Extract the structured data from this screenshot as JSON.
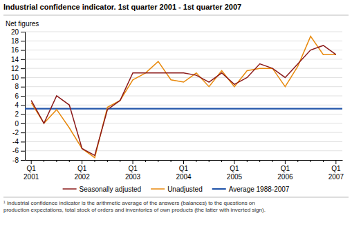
{
  "chart_data": {
    "type": "line",
    "title": "Industrial confidence indicator. 1st quarter 2001 - 1st quarter 2007",
    "ylabel": "Net figures",
    "annotations": [
      "¹ Industrial confidence indicator is the arithmetic average of the answers (balances) to the questions on\nproduction expectations, total stock of orders and inventories of own products (the latter with inverted sign)."
    ],
    "categories": [
      "Q1\n2001",
      null,
      null,
      null,
      "Q1\n2002",
      null,
      null,
      null,
      "Q1\n2003",
      null,
      null,
      null,
      "Q1\n2004",
      null,
      null,
      null,
      "Q1\n2005",
      null,
      null,
      null,
      "Q1\n2006",
      null,
      null,
      null,
      "Q1\n2007"
    ],
    "series": [
      {
        "name": "Seasonally adjusted",
        "color": "#8B1A1A",
        "values": [
          5,
          0,
          6,
          4,
          -5.5,
          -7,
          3,
          5,
          11,
          11,
          11,
          11,
          11,
          10.5,
          9,
          11,
          8.5,
          10,
          13,
          12,
          10,
          13,
          16,
          17,
          15
        ]
      },
      {
        "name": "Unadjusted",
        "color": "#E8890C",
        "values": [
          4.5,
          0,
          3,
          -1,
          -5.5,
          -7.5,
          3.5,
          5,
          9.5,
          11,
          13.5,
          9.5,
          9,
          11,
          8,
          11.5,
          8,
          11.5,
          12,
          12,
          8,
          12.5,
          19,
          15,
          15
        ]
      }
    ],
    "reference_line": {
      "name": "Average 1988-2007",
      "value": 3.2,
      "color": "#2255AA"
    },
    "ylim": [
      -8,
      20
    ],
    "yticks": [
      -8,
      -6,
      -4,
      -2,
      0,
      2,
      4,
      6,
      8,
      10,
      12,
      14,
      16,
      18,
      20
    ],
    "grid": true,
    "legend": "bottom"
  }
}
